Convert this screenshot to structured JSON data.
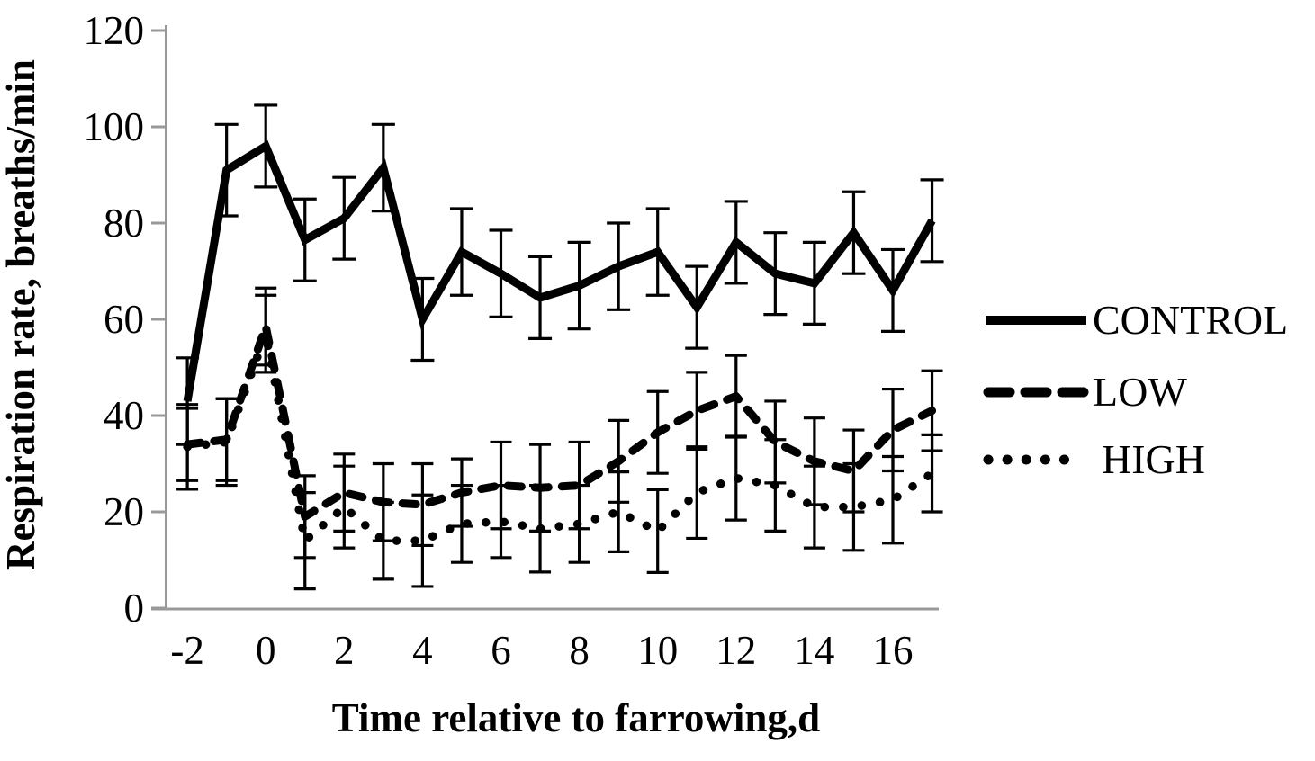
{
  "figure": {
    "background": "#ffffff",
    "colors": {
      "series": "#000000",
      "axis": "#999999",
      "text": "#000000"
    }
  },
  "chart_data": {
    "type": "line",
    "title": "",
    "xlabel": "Time relative to farrowing,d",
    "ylabel": "Respiration rate, breaths/min",
    "x": [
      -2,
      -1,
      0,
      1,
      2,
      3,
      4,
      5,
      6,
      7,
      8,
      9,
      10,
      11,
      12,
      13,
      14,
      15,
      16,
      17
    ],
    "x_tick_labels": [
      -2,
      0,
      2,
      4,
      6,
      8,
      10,
      12,
      14,
      16
    ],
    "y_ticks": [
      0,
      20,
      40,
      60,
      80,
      100,
      120
    ],
    "ylim": [
      0,
      120
    ],
    "xlim": [
      -2,
      17
    ],
    "grid": false,
    "legend_position": "right",
    "error_bars": true,
    "series": [
      {
        "name": "CONTROL",
        "style": "solid",
        "values": [
          43,
          91,
          96,
          76.5,
          81,
          91.5,
          60,
          74,
          69.5,
          64.5,
          67,
          71,
          74,
          62.5,
          76,
          69.5,
          67.5,
          78,
          66,
          80.5
        ],
        "errors": [
          9,
          9.5,
          8.5,
          8.5,
          8.5,
          9,
          8.5,
          9,
          9,
          8.5,
          9,
          9,
          9,
          8.5,
          8.5,
          8.5,
          8.5,
          8.5,
          8.5,
          8.5
        ]
      },
      {
        "name": "LOW",
        "style": "dashed",
        "values": [
          34,
          35,
          58.5,
          19,
          24,
          22,
          21.5,
          24,
          25.5,
          25,
          25.5,
          30.5,
          36.5,
          41,
          44,
          34.5,
          30.5,
          28.5,
          37,
          41
        ],
        "errors": [
          7.5,
          8.5,
          8,
          8.5,
          8,
          8,
          8.5,
          7,
          9,
          9,
          9,
          8.5,
          8.5,
          8,
          8.5,
          8.5,
          9,
          8.5,
          8.5,
          8.3
        ]
      },
      {
        "name": "HIGH",
        "style": "dotted",
        "values": [
          33.5,
          34.5,
          57,
          14,
          21,
          14,
          14,
          17.5,
          18,
          16.5,
          17.5,
          20,
          16,
          24,
          27,
          25.5,
          21,
          21,
          22.5,
          28
        ],
        "errors": [
          8.8,
          9,
          8,
          10,
          8.5,
          8,
          9.5,
          8,
          7.5,
          9,
          8,
          8.3,
          8.6,
          9.5,
          8.7,
          9.5,
          8.5,
          9,
          9,
          8
        ]
      }
    ]
  }
}
